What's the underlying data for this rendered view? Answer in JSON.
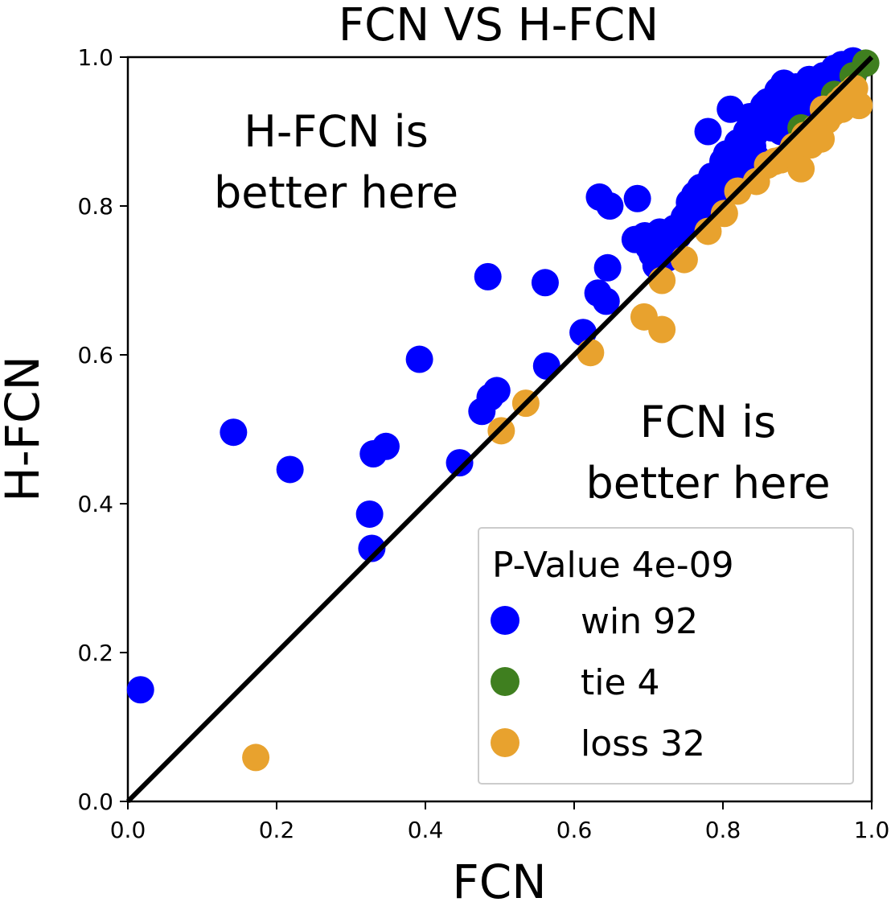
{
  "chart_data": {
    "type": "scatter",
    "title": "FCN VS H-FCN",
    "xlabel": "FCN",
    "ylabel": "H-FCN",
    "xlim": [
      0.0,
      1.0
    ],
    "ylim": [
      0.0,
      1.0
    ],
    "xticks": [
      "0.0",
      "0.2",
      "0.4",
      "0.6",
      "0.8",
      "1.0"
    ],
    "yticks": [
      "0.0",
      "0.2",
      "0.4",
      "0.6",
      "0.8",
      "1.0"
    ],
    "grid": false,
    "diagonal_line": true,
    "annotations": [
      {
        "lines": [
          "H-FCN is",
          "better here"
        ],
        "x": 0.28,
        "y": 0.88
      },
      {
        "lines": [
          "FCN is",
          "better here"
        ],
        "x": 0.78,
        "y": 0.49
      }
    ],
    "legend": {
      "placement": "lower-right",
      "title": "P-Value 4e-09",
      "entries": [
        {
          "label": "win 92",
          "color": "#0000ff"
        },
        {
          "label": "tie 4",
          "color": "#3f7f1f"
        },
        {
          "label": "loss 32",
          "color": "#e8a22e"
        }
      ]
    },
    "series": [
      {
        "name": "win 92",
        "color": "#0000ff",
        "points": [
          [
            0.017,
            0.15
          ],
          [
            0.142,
            0.496
          ],
          [
            0.218,
            0.446
          ],
          [
            0.325,
            0.386
          ],
          [
            0.328,
            0.34
          ],
          [
            0.33,
            0.467
          ],
          [
            0.347,
            0.477
          ],
          [
            0.392,
            0.594
          ],
          [
            0.446,
            0.455
          ],
          [
            0.476,
            0.524
          ],
          [
            0.484,
            0.705
          ],
          [
            0.487,
            0.543
          ],
          [
            0.496,
            0.552
          ],
          [
            0.561,
            0.697
          ],
          [
            0.563,
            0.585
          ],
          [
            0.612,
            0.63
          ],
          [
            0.632,
            0.683
          ],
          [
            0.634,
            0.812
          ],
          [
            0.643,
            0.672
          ],
          [
            0.645,
            0.717
          ],
          [
            0.648,
            0.8
          ],
          [
            0.682,
            0.755
          ],
          [
            0.685,
            0.81
          ],
          [
            0.695,
            0.76
          ],
          [
            0.7,
            0.745
          ],
          [
            0.705,
            0.735
          ],
          [
            0.71,
            0.72
          ],
          [
            0.715,
            0.765
          ],
          [
            0.72,
            0.75
          ],
          [
            0.725,
            0.73
          ],
          [
            0.735,
            0.77
          ],
          [
            0.74,
            0.76
          ],
          [
            0.748,
            0.785
          ],
          [
            0.752,
            0.79
          ],
          [
            0.755,
            0.805
          ],
          [
            0.76,
            0.78
          ],
          [
            0.762,
            0.815
          ],
          [
            0.768,
            0.8
          ],
          [
            0.77,
            0.825
          ],
          [
            0.775,
            0.79
          ],
          [
            0.78,
            0.82
          ],
          [
            0.785,
            0.84
          ],
          [
            0.787,
            0.805
          ],
          [
            0.79,
            0.81
          ],
          [
            0.795,
            0.83
          ],
          [
            0.797,
            0.845
          ],
          [
            0.8,
            0.86
          ],
          [
            0.803,
            0.84
          ],
          [
            0.805,
            0.87
          ],
          [
            0.81,
            0.855
          ],
          [
            0.815,
            0.875
          ],
          [
            0.82,
            0.885
          ],
          [
            0.822,
            0.86
          ],
          [
            0.826,
            0.85
          ],
          [
            0.83,
            0.87
          ],
          [
            0.832,
            0.9
          ],
          [
            0.836,
            0.92
          ],
          [
            0.84,
            0.88
          ],
          [
            0.842,
            0.895
          ],
          [
            0.845,
            0.865
          ],
          [
            0.85,
            0.91
          ],
          [
            0.855,
            0.935
          ],
          [
            0.86,
            0.94
          ],
          [
            0.865,
            0.905
          ],
          [
            0.87,
            0.918
          ],
          [
            0.874,
            0.955
          ],
          [
            0.878,
            0.9
          ],
          [
            0.882,
            0.965
          ],
          [
            0.887,
            0.93
          ],
          [
            0.89,
            0.945
          ],
          [
            0.894,
            0.92
          ],
          [
            0.898,
            0.96
          ],
          [
            0.9,
            0.93
          ],
          [
            0.904,
            0.952
          ],
          [
            0.908,
            0.91
          ],
          [
            0.912,
            0.94
          ],
          [
            0.916,
            0.97
          ],
          [
            0.92,
            0.935
          ],
          [
            0.924,
            0.955
          ],
          [
            0.93,
            0.95
          ],
          [
            0.935,
            0.975
          ],
          [
            0.94,
            0.96
          ],
          [
            0.945,
            0.965
          ],
          [
            0.95,
            0.985
          ],
          [
            0.955,
            0.97
          ],
          [
            0.96,
            0.99
          ],
          [
            0.965,
            0.96
          ],
          [
            0.97,
            0.98
          ],
          [
            0.975,
            0.995
          ],
          [
            0.98,
            0.985
          ],
          [
            0.81,
            0.93
          ],
          [
            0.78,
            0.9
          ]
        ]
      },
      {
        "name": "tie 4",
        "color": "#3f7f1f",
        "points": [
          [
            0.905,
            0.905
          ],
          [
            0.95,
            0.95
          ],
          [
            0.975,
            0.975
          ],
          [
            0.992,
            0.992
          ]
        ]
      },
      {
        "name": "loss 32",
        "color": "#e8a22e",
        "points": [
          [
            0.172,
            0.059
          ],
          [
            0.502,
            0.498
          ],
          [
            0.535,
            0.535
          ],
          [
            0.622,
            0.603
          ],
          [
            0.694,
            0.651
          ],
          [
            0.718,
            0.634
          ],
          [
            0.718,
            0.7
          ],
          [
            0.748,
            0.728
          ],
          [
            0.78,
            0.766
          ],
          [
            0.802,
            0.79
          ],
          [
            0.82,
            0.82
          ],
          [
            0.845,
            0.833
          ],
          [
            0.86,
            0.855
          ],
          [
            0.878,
            0.862
          ],
          [
            0.892,
            0.872
          ],
          [
            0.905,
            0.85
          ],
          [
            0.91,
            0.895
          ],
          [
            0.918,
            0.882
          ],
          [
            0.925,
            0.905
          ],
          [
            0.932,
            0.89
          ],
          [
            0.94,
            0.915
          ],
          [
            0.948,
            0.925
          ],
          [
            0.955,
            0.938
          ],
          [
            0.962,
            0.945
          ],
          [
            0.97,
            0.952
          ],
          [
            0.977,
            0.958
          ],
          [
            0.983,
            0.935
          ],
          [
            0.87,
            0.86
          ],
          [
            0.89,
            0.87
          ],
          [
            0.895,
            0.88
          ],
          [
            0.935,
            0.93
          ],
          [
            0.96,
            0.93
          ]
        ]
      }
    ]
  }
}
